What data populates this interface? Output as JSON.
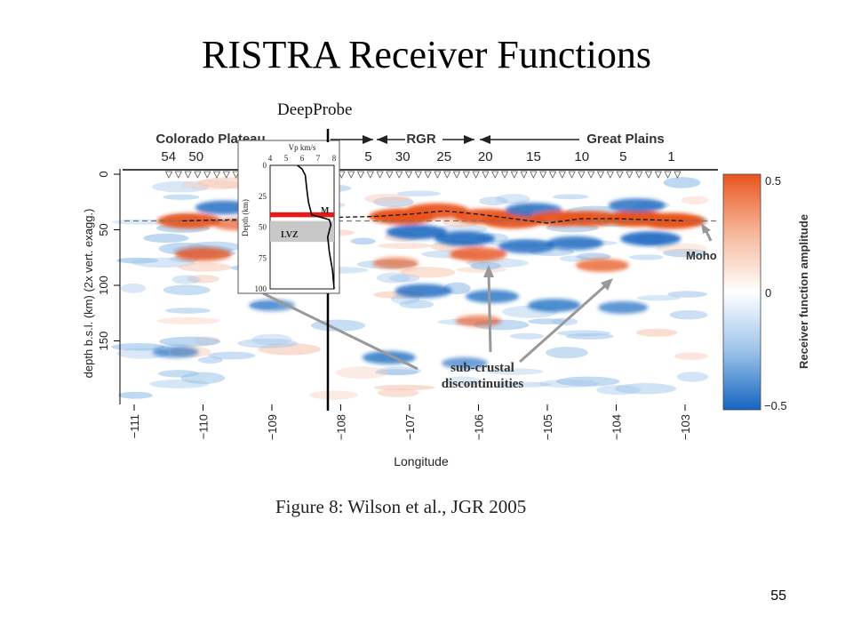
{
  "slide": {
    "title": "RISTRA  Receiver Functions",
    "page_number": "55",
    "deep_probe_label": "DeepProbe",
    "caption": "Figure 8:  Wilson et al., JGR 2005"
  },
  "colors": {
    "positive": "#e8541e",
    "negative": "#1565c0",
    "moho_layer": "#e21a1a",
    "lvz_fill": "#c8c8c8"
  },
  "chart_data": [
    {
      "type": "heatmap",
      "title": "",
      "xlabel": "Longitude",
      "ylabel": "depth b.s.l. (km) (2x vert. exagg.)",
      "xlim": [
        -111,
        -102.7
      ],
      "ylim": [
        200,
        0
      ],
      "x_ticks": [
        "−111",
        "−110",
        "−109",
        "−108",
        "−107",
        "−106",
        "−105",
        "−104",
        "−103"
      ],
      "y_ticks": [
        "0",
        "50",
        "100",
        "150"
      ],
      "regions": [
        {
          "name": "Colorado Plateau",
          "lon_from": -111,
          "lon_to": -107.8
        },
        {
          "name": "RGR",
          "lon_from": -107.8,
          "lon_to": -105.8
        },
        {
          "name": "Great Plains",
          "lon_from": -105.8,
          "lon_to": -102.8
        }
      ],
      "station_labels": [
        {
          "label": "54",
          "lon": -110.5
        },
        {
          "label": "50",
          "lon": -110.1
        },
        {
          "label": "5",
          "lon": -107.6
        },
        {
          "label": "30",
          "lon": -107.1
        },
        {
          "label": "25",
          "lon": -106.5
        },
        {
          "label": "20",
          "lon": -105.9
        },
        {
          "label": "15",
          "lon": -105.2
        },
        {
          "label": "10",
          "lon": -104.5
        },
        {
          "label": "5",
          "lon": -103.9
        },
        {
          "label": "1",
          "lon": -103.2
        }
      ],
      "colorbar": {
        "label": "Receiver function amplitude",
        "range": [
          -0.5,
          0.5
        ],
        "ticks": [
          "0.5",
          "0",
          "−0.5"
        ]
      },
      "moho_reference_depth_km": 42,
      "annotations": [
        "Moho",
        "sub-crustal\ndiscontinuities"
      ],
      "moho_picks": [
        {
          "lon": -110.3,
          "depth": 42
        },
        {
          "lon": -107.5,
          "depth": 38
        },
        {
          "lon": -107.0,
          "depth": 36
        },
        {
          "lon": -106.5,
          "depth": 33
        },
        {
          "lon": -106.0,
          "depth": 36
        },
        {
          "lon": -105.5,
          "depth": 40
        },
        {
          "lon": -105.0,
          "depth": 44
        },
        {
          "lon": -104.5,
          "depth": 40
        },
        {
          "lon": -104.0,
          "depth": 40
        },
        {
          "lon": -103.5,
          "depth": 41
        },
        {
          "lon": -103.0,
          "depth": 42
        }
      ],
      "amplitude_blobs": [
        {
          "lon": -110.2,
          "depth": 42,
          "amp": 0.45
        },
        {
          "lon": -109.7,
          "depth": 30,
          "amp": -0.35
        },
        {
          "lon": -109.5,
          "depth": 45,
          "amp": 0.25
        },
        {
          "lon": -110.0,
          "depth": 72,
          "amp": 0.35
        },
        {
          "lon": -107.1,
          "depth": 38,
          "amp": 0.5
        },
        {
          "lon": -106.6,
          "depth": 33,
          "amp": 0.45
        },
        {
          "lon": -106.9,
          "depth": 52,
          "amp": -0.4
        },
        {
          "lon": -106.2,
          "depth": 58,
          "amp": -0.4
        },
        {
          "lon": -106.0,
          "depth": 72,
          "amp": 0.35
        },
        {
          "lon": -105.9,
          "depth": 38,
          "amp": 0.45
        },
        {
          "lon": -105.5,
          "depth": 42,
          "amp": 0.45
        },
        {
          "lon": -105.2,
          "depth": 32,
          "amp": -0.35
        },
        {
          "lon": -104.8,
          "depth": 40,
          "amp": 0.45
        },
        {
          "lon": -104.4,
          "depth": 40,
          "amp": 0.45
        },
        {
          "lon": -103.7,
          "depth": 40,
          "amp": 0.5
        },
        {
          "lon": -103.2,
          "depth": 42,
          "amp": 0.5
        },
        {
          "lon": -105.3,
          "depth": 65,
          "amp": -0.35
        },
        {
          "lon": -104.6,
          "depth": 62,
          "amp": -0.35
        },
        {
          "lon": -103.5,
          "depth": 58,
          "amp": -0.4
        },
        {
          "lon": -103.7,
          "depth": 28,
          "amp": -0.35
        },
        {
          "lon": -104.2,
          "depth": 82,
          "amp": 0.3
        },
        {
          "lon": -106.8,
          "depth": 105,
          "amp": -0.35
        },
        {
          "lon": -105.8,
          "depth": 110,
          "amp": -0.3
        },
        {
          "lon": -104.9,
          "depth": 118,
          "amp": -0.3
        },
        {
          "lon": -103.9,
          "depth": 120,
          "amp": -0.25
        },
        {
          "lon": -107.3,
          "depth": 165,
          "amp": -0.3
        },
        {
          "lon": -106.2,
          "depth": 170,
          "amp": -0.2
        },
        {
          "lon": -110.4,
          "depth": 160,
          "amp": -0.2
        },
        {
          "lon": -109.0,
          "depth": 118,
          "amp": -0.2
        },
        {
          "lon": -106.0,
          "depth": 132,
          "amp": 0.2
        },
        {
          "lon": -109.0,
          "depth": 82,
          "amp": 0.2
        },
        {
          "lon": -107.2,
          "depth": 80,
          "amp": 0.2
        }
      ]
    },
    {
      "type": "line",
      "title": "",
      "xlabel": "Vp km/s",
      "ylabel": "Depth (km)",
      "xlim": [
        4,
        8
      ],
      "ylim": [
        100,
        0
      ],
      "x_ticks": [
        "4",
        "5",
        "6",
        "7",
        "8"
      ],
      "y_ticks": [
        "0",
        "25",
        "50",
        "75",
        "100"
      ],
      "series": [
        {
          "x": [
            5.7,
            6.0,
            6.2,
            6.3,
            6.4,
            6.6,
            7.7,
            7.8,
            7.7,
            7.6,
            7.7,
            7.9,
            8.0
          ],
          "y": [
            0,
            3,
            8,
            20,
            30,
            40,
            44,
            48,
            53,
            58,
            70,
            85,
            100
          ]
        }
      ],
      "layers": [
        {
          "label": "M",
          "depth_from": 38,
          "depth_to": 42
        },
        {
          "label": "LVZ",
          "depth_from": 45,
          "depth_to": 62
        }
      ]
    }
  ]
}
